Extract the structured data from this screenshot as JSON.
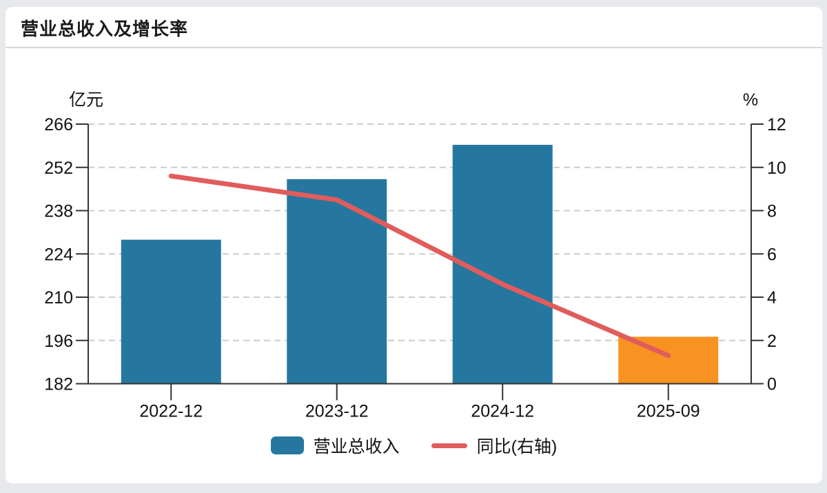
{
  "header": {
    "title": "营业总收入及增长率"
  },
  "legend": {
    "bar_label": "营业总收入",
    "line_label": "同比(右轴)"
  },
  "colors": {
    "bar_blue": "#26779f",
    "bar_orange": "#f89220",
    "line_red": "#e15c5c",
    "grid": "#cccccc",
    "axis": "#333333",
    "text": "#111111",
    "background": "#e7e9ec",
    "card": "#ffffff"
  },
  "chart_data": {
    "type": "bar",
    "subtype": "bar-line-combo-dual-axis",
    "title": "营业总收入及增长率",
    "categories": [
      "2022-12",
      "2023-12",
      "2024-12",
      "2025-09"
    ],
    "series": [
      {
        "name": "营业总收入",
        "type": "bar",
        "axis": "left",
        "unit": "亿元",
        "values": [
          228.6,
          248.2,
          259.3,
          197.2
        ],
        "bar_colors": [
          "#26779f",
          "#26779f",
          "#26779f",
          "#f89220"
        ]
      },
      {
        "name": "同比(右轴)",
        "type": "line",
        "axis": "right",
        "unit": "%",
        "values": [
          9.6,
          8.5,
          4.6,
          1.3
        ],
        "color": "#e15c5c"
      }
    ],
    "left_axis": {
      "title": "亿元",
      "min": 182,
      "max": 266,
      "ticks": [
        266,
        252,
        238,
        224,
        210,
        196,
        182
      ]
    },
    "right_axis": {
      "title": "%",
      "min": 0,
      "max": 12,
      "ticks": [
        12,
        10,
        8,
        6,
        4,
        2,
        0
      ]
    },
    "x_axis": {
      "labels": [
        "2022-12",
        "2023-12",
        "2024-12",
        "2025-09"
      ]
    },
    "grid": {
      "horizontal_dashed": true
    },
    "legend_position": "bottom"
  }
}
